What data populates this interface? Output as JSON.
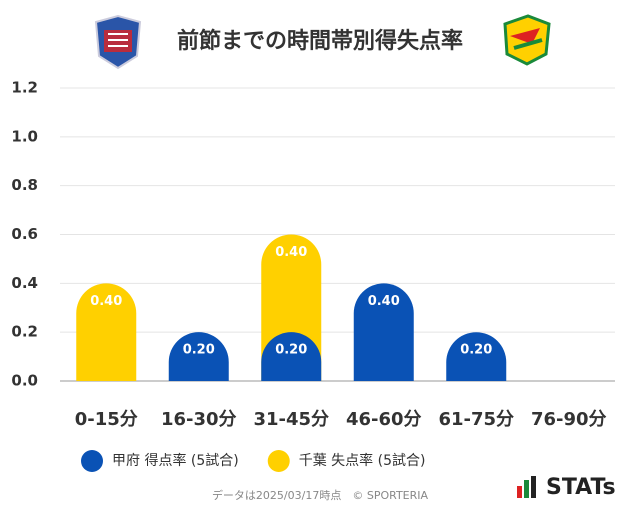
{
  "chart_data": {
    "type": "bar",
    "title": "前節までの時間帯別得失点率",
    "categories": [
      "0-15分",
      "16-30分",
      "31-45分",
      "46-60分",
      "61-75分",
      "76-90分"
    ],
    "series": [
      {
        "name": "甲府 得点率 (5試合)",
        "color": "#0a52b5",
        "values": [
          0,
          0.2,
          0.2,
          0.4,
          0.2,
          0
        ],
        "value_labels": [
          null,
          "0.20",
          "0.20",
          "0.40",
          "0.20",
          null
        ]
      },
      {
        "name": "千葉 失点率 (5試合)",
        "color": "#ffd000",
        "values": [
          0.4,
          0,
          0.4,
          0,
          0,
          0
        ],
        "value_labels": [
          "0.40",
          null,
          "0.40",
          null,
          null,
          null
        ]
      }
    ],
    "stacked": true,
    "ylim": [
      0,
      1.2
    ],
    "yticks": [
      {
        "value": 0,
        "label": "0.0"
      },
      0.2,
      0.4,
      0.6,
      0.8,
      {
        "value": 1,
        "label": "1.0"
      },
      1.2
    ],
    "grid": true
  },
  "footer": {
    "note": "データは2025/03/17時点　© SPORTERIA",
    "brand": "STATs"
  }
}
